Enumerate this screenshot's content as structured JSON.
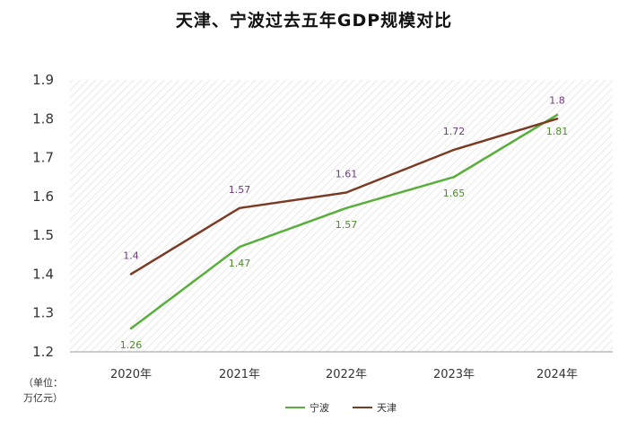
{
  "chart_data": {
    "type": "line",
    "title": "天津、宁波过去五年GDP规模对比",
    "categories": [
      "2020年",
      "2021年",
      "2022年",
      "2023年",
      "2024年"
    ],
    "series": [
      {
        "name": "宁波",
        "color": "#5aaf3c",
        "label_color": "#4e8a2c",
        "values": [
          1.26,
          1.47,
          1.57,
          1.65,
          1.81
        ]
      },
      {
        "name": "天津",
        "color": "#7a3b24",
        "label_color": "#6d3a7a",
        "values": [
          1.4,
          1.57,
          1.61,
          1.72,
          1.8
        ]
      }
    ],
    "yticks": [
      "1.2",
      "1.3",
      "1.4",
      "1.5",
      "1.6",
      "1.7",
      "1.8",
      "1.9"
    ],
    "ylim": [
      1.2,
      1.9
    ],
    "ylabel_line1": "（单位：",
    "ylabel_line2": "万亿元）",
    "legend_position": "bottom"
  }
}
